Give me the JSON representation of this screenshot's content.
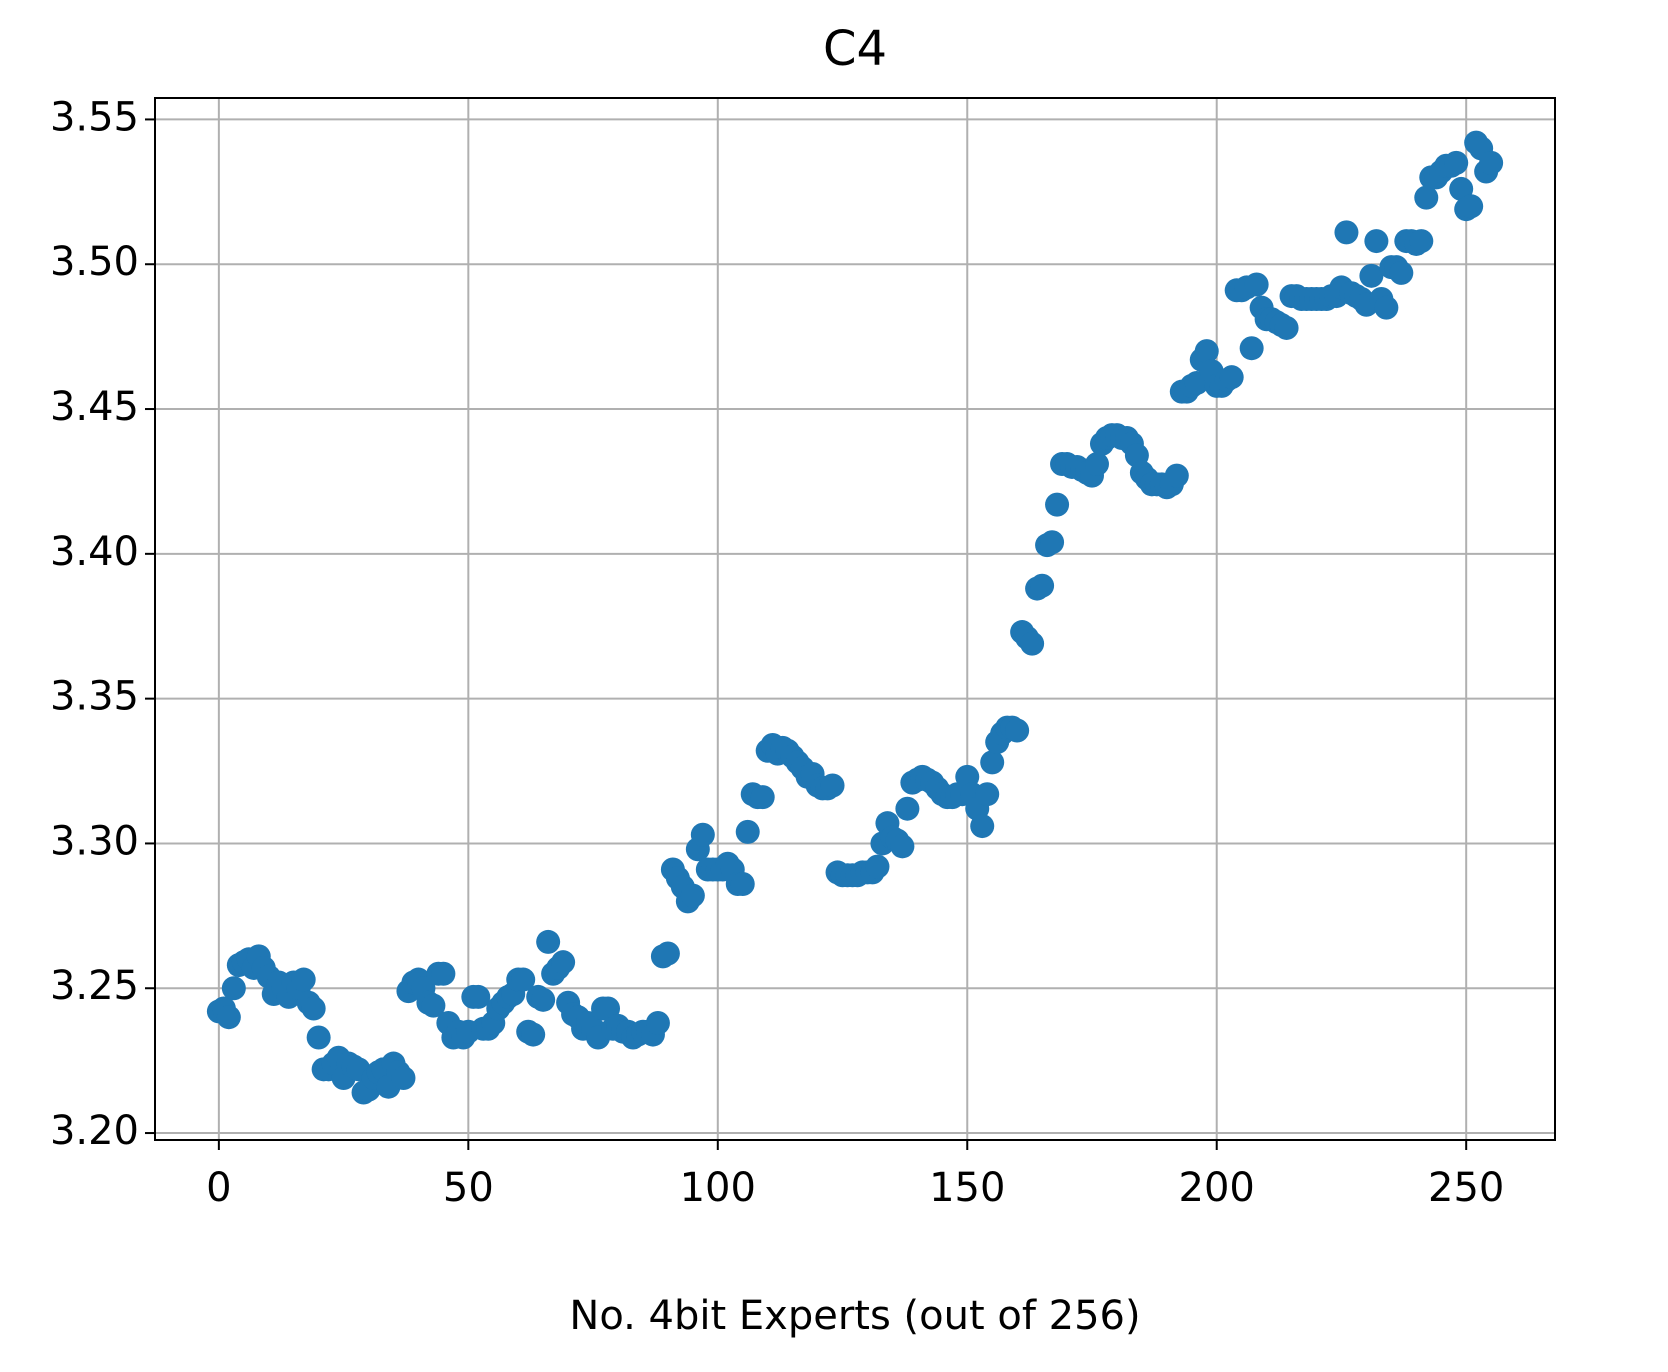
{
  "chart_data": {
    "type": "scatter",
    "title": "C4",
    "xlabel": "No. 4bit Experts (out of 256)",
    "color": "#1f77b4",
    "grid": true,
    "xlim": [
      -12.8,
      267.8
    ],
    "ylim": [
      3.1976,
      3.5574
    ],
    "xticks": [
      0,
      50,
      100,
      150,
      200,
      250
    ],
    "yticks": [
      {
        "value": 3.2,
        "label": "3.20"
      },
      {
        "value": 3.25,
        "label": "3.25"
      },
      {
        "value": 3.3,
        "label": "3.30"
      },
      {
        "value": 3.35,
        "label": "3.35"
      },
      {
        "value": 3.4,
        "label": "3.40"
      },
      {
        "value": 3.45,
        "label": "3.45"
      },
      {
        "value": 3.5,
        "label": "3.50"
      },
      {
        "value": 3.55,
        "label": "3.55"
      }
    ],
    "x": [
      0,
      1,
      2,
      3,
      4,
      5,
      6,
      7,
      8,
      9,
      10,
      11,
      12,
      13,
      14,
      15,
      16,
      17,
      18,
      19,
      20,
      21,
      22,
      23,
      24,
      25,
      26,
      27,
      28,
      29,
      30,
      31,
      32,
      33,
      34,
      35,
      36,
      37,
      38,
      39,
      40,
      41,
      42,
      43,
      44,
      45,
      46,
      47,
      48,
      49,
      50,
      51,
      52,
      53,
      54,
      55,
      56,
      57,
      58,
      59,
      60,
      61,
      62,
      63,
      64,
      65,
      66,
      67,
      68,
      69,
      70,
      71,
      72,
      73,
      74,
      75,
      76,
      77,
      78,
      79,
      80,
      81,
      82,
      83,
      84,
      85,
      86,
      87,
      88,
      89,
      90,
      91,
      92,
      93,
      94,
      95,
      96,
      97,
      98,
      99,
      100,
      101,
      102,
      103,
      104,
      105,
      106,
      107,
      108,
      109,
      110,
      111,
      112,
      113,
      114,
      115,
      116,
      117,
      118,
      119,
      120,
      121,
      122,
      123,
      124,
      125,
      126,
      127,
      128,
      129,
      130,
      131,
      132,
      133,
      134,
      135,
      136,
      137,
      138,
      139,
      140,
      141,
      142,
      143,
      144,
      145,
      146,
      147,
      148,
      149,
      150,
      151,
      152,
      153,
      154,
      155,
      156,
      157,
      158,
      159,
      160,
      161,
      162,
      163,
      164,
      165,
      166,
      167,
      168,
      169,
      170,
      171,
      172,
      173,
      174,
      175,
      176,
      177,
      178,
      179,
      180,
      181,
      182,
      183,
      184,
      185,
      186,
      187,
      188,
      189,
      190,
      191,
      192,
      193,
      194,
      195,
      196,
      197,
      198,
      199,
      200,
      201,
      202,
      203,
      204,
      205,
      206,
      207,
      208,
      209,
      210,
      211,
      212,
      213,
      214,
      215,
      216,
      217,
      218,
      219,
      220,
      221,
      222,
      223,
      224,
      225,
      226,
      227,
      228,
      229,
      230,
      231,
      232,
      233,
      234,
      235,
      236,
      237,
      238,
      239,
      240,
      241,
      242,
      243,
      244,
      245,
      246,
      247,
      248,
      249,
      250,
      251,
      252,
      253,
      254,
      255
    ],
    "values": [
      3.242,
      3.243,
      3.24,
      3.25,
      3.258,
      3.259,
      3.26,
      3.257,
      3.261,
      3.257,
      3.254,
      3.248,
      3.252,
      3.25,
      3.247,
      3.252,
      3.25,
      3.253,
      3.245,
      3.243,
      3.233,
      3.222,
      3.222,
      3.224,
      3.226,
      3.219,
      3.224,
      3.223,
      3.222,
      3.214,
      3.215,
      3.219,
      3.221,
      3.222,
      3.216,
      3.224,
      3.221,
      3.219,
      3.249,
      3.252,
      3.253,
      3.25,
      3.245,
      3.244,
      3.255,
      3.255,
      3.238,
      3.233,
      3.235,
      3.233,
      3.235,
      3.247,
      3.247,
      3.236,
      3.236,
      3.238,
      3.243,
      3.245,
      3.247,
      3.248,
      3.253,
      3.253,
      3.235,
      3.234,
      3.247,
      3.246,
      3.266,
      3.255,
      3.257,
      3.259,
      3.245,
      3.241,
      3.24,
      3.236,
      3.238,
      3.236,
      3.233,
      3.243,
      3.243,
      3.236,
      3.237,
      3.235,
      3.235,
      3.233,
      3.234,
      3.235,
      3.235,
      3.234,
      3.238,
      3.261,
      3.262,
      3.291,
      3.288,
      3.285,
      3.28,
      3.282,
      3.298,
      3.303,
      3.291,
      3.291,
      3.291,
      3.291,
      3.293,
      3.291,
      3.286,
      3.286,
      3.304,
      3.317,
      3.316,
      3.316,
      3.332,
      3.334,
      3.331,
      3.333,
      3.332,
      3.33,
      3.328,
      3.326,
      3.323,
      3.324,
      3.32,
      3.319,
      3.319,
      3.32,
      3.29,
      3.289,
      3.289,
      3.289,
      3.289,
      3.29,
      3.29,
      3.29,
      3.292,
      3.3,
      3.307,
      3.302,
      3.301,
      3.299,
      3.312,
      3.321,
      3.322,
      3.323,
      3.322,
      3.321,
      3.319,
      3.317,
      3.316,
      3.316,
      3.317,
      3.317,
      3.323,
      3.317,
      3.312,
      3.306,
      3.317,
      3.328,
      3.335,
      3.338,
      3.34,
      3.34,
      3.339,
      3.373,
      3.371,
      3.369,
      3.388,
      3.389,
      3.403,
      3.404,
      3.417,
      3.431,
      3.431,
      3.43,
      3.43,
      3.429,
      3.428,
      3.427,
      3.431,
      3.438,
      3.44,
      3.441,
      3.441,
      3.44,
      3.44,
      3.438,
      3.434,
      3.428,
      3.426,
      3.424,
      3.424,
      3.424,
      3.423,
      3.424,
      3.427,
      3.456,
      3.456,
      3.458,
      3.459,
      3.467,
      3.47,
      3.463,
      3.458,
      3.458,
      3.46,
      3.461,
      3.491,
      3.491,
      3.492,
      3.471,
      3.493,
      3.485,
      3.481,
      3.481,
      3.48,
      3.479,
      3.478,
      3.489,
      3.489,
      3.488,
      3.488,
      3.488,
      3.488,
      3.488,
      3.488,
      3.489,
      3.489,
      3.492,
      3.511,
      3.49,
      3.489,
      3.488,
      3.486,
      3.496,
      3.508,
      3.488,
      3.485,
      3.499,
      3.499,
      3.497,
      3.508,
      3.508,
      3.507,
      3.508,
      3.523,
      3.53,
      3.53,
      3.532,
      3.534,
      3.534,
      3.535,
      3.526,
      3.519,
      3.52,
      3.542,
      3.54,
      3.532,
      3.535
    ]
  }
}
